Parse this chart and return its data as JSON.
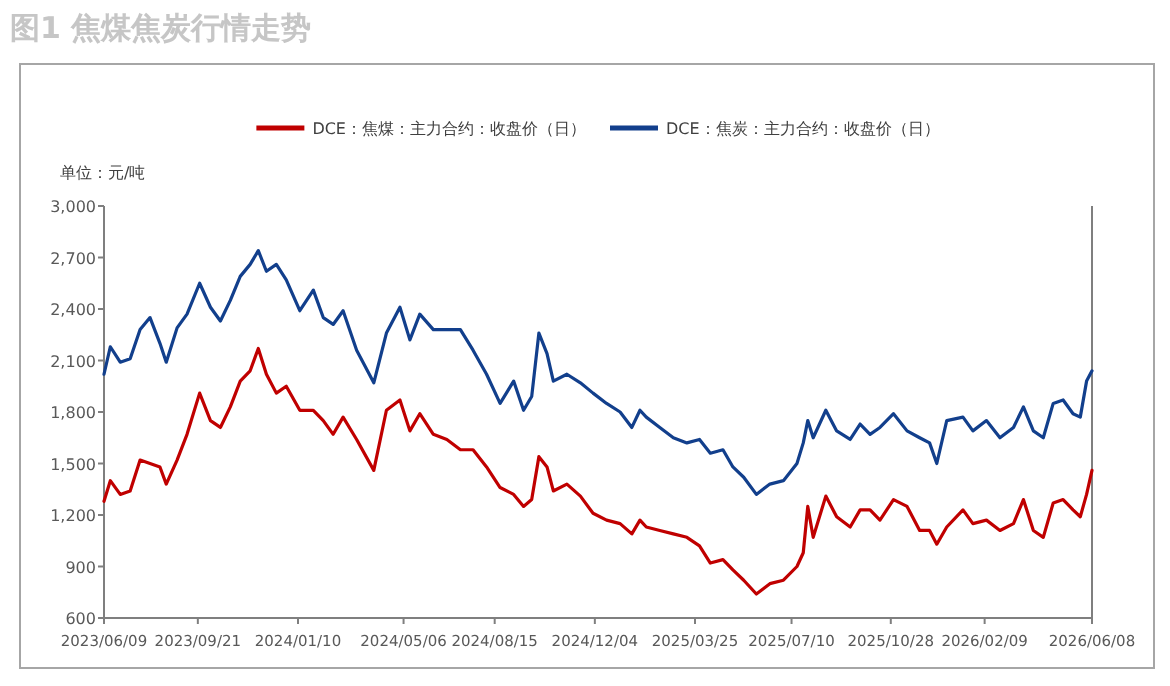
{
  "chart_data": {
    "type": "line",
    "title": "图1 焦煤焦炭行情走势",
    "ylabel": "单位：元/吨",
    "legend": "top",
    "grid": false,
    "marker": "none",
    "line_style": "solid",
    "x": [
      "2023-06-09",
      "2023-06-16",
      "2023-06-27",
      "2023-07-08",
      "2023-07-19",
      "2023-07-30",
      "2023-08-10",
      "2023-08-17",
      "2023-08-29",
      "2023-09-09",
      "2023-09-23",
      "2023-10-05",
      "2023-10-16",
      "2023-10-27",
      "2023-11-07",
      "2023-11-18",
      "2023-11-27",
      "2023-12-06",
      "2023-12-17",
      "2023-12-28",
      "2024-01-12",
      "2024-01-27",
      "2024-02-07",
      "2024-02-18",
      "2024-02-29",
      "2024-03-15",
      "2024-04-03",
      "2024-04-17",
      "2024-05-02",
      "2024-05-13",
      "2024-05-24",
      "2024-06-08",
      "2024-06-23",
      "2024-07-08",
      "2024-07-22",
      "2024-08-06",
      "2024-08-21",
      "2024-09-05",
      "2024-09-16",
      "2024-09-25",
      "2024-10-03",
      "2024-10-12",
      "2024-10-19",
      "2024-11-03",
      "2024-11-18",
      "2024-12-02",
      "2024-12-17",
      "2025-01-01",
      "2025-01-14",
      "2025-01-23",
      "2025-01-30",
      "2025-02-14",
      "2025-03-01",
      "2025-03-16",
      "2025-03-30",
      "2025-04-11",
      "2025-04-25",
      "2025-05-06",
      "2025-05-18",
      "2025-06-01",
      "2025-06-16",
      "2025-07-01",
      "2025-07-16",
      "2025-07-23",
      "2025-07-28",
      "2025-08-03",
      "2025-08-17",
      "2025-08-29",
      "2025-09-13",
      "2025-09-24",
      "2025-10-05",
      "2025-10-16",
      "2025-10-31",
      "2025-11-15",
      "2025-11-29",
      "2025-12-10",
      "2025-12-18",
      "2025-12-29",
      "2026-01-16",
      "2026-01-27",
      "2026-02-11",
      "2026-02-26",
      "2026-03-13",
      "2026-03-24",
      "2026-04-04",
      "2026-04-15",
      "2026-04-26",
      "2026-05-07",
      "2026-05-18",
      "2026-05-26",
      "2026-06-02",
      "2026-06-08"
    ],
    "series": [
      {
        "name": "DCE：焦煤：主力合约：收盘价（日）",
        "color": "#c00000",
        "values": [
          1280,
          1400,
          1320,
          1340,
          1520,
          1500,
          1480,
          1380,
          1520,
          1670,
          1910,
          1750,
          1710,
          1830,
          1980,
          2040,
          2170,
          2020,
          1910,
          1950,
          1810,
          1810,
          1750,
          1670,
          1770,
          1640,
          1460,
          1810,
          1870,
          1690,
          1790,
          1670,
          1640,
          1580,
          1580,
          1480,
          1360,
          1320,
          1250,
          1290,
          1540,
          1480,
          1340,
          1380,
          1310,
          1210,
          1170,
          1150,
          1090,
          1170,
          1130,
          1110,
          1090,
          1070,
          1020,
          920,
          940,
          880,
          820,
          740,
          800,
          820,
          900,
          980,
          1250,
          1070,
          1310,
          1190,
          1130,
          1230,
          1230,
          1170,
          1290,
          1250,
          1110,
          1110,
          1030,
          1130,
          1230,
          1150,
          1170,
          1110,
          1150,
          1290,
          1110,
          1070,
          1270,
          1290,
          1230,
          1190,
          1320,
          1460
        ]
      },
      {
        "name": "DCE：焦炭：主力合约：收盘价（日）",
        "color": "#123f8c",
        "values": [
          2020,
          2180,
          2090,
          2110,
          2280,
          2350,
          2200,
          2090,
          2290,
          2370,
          2550,
          2410,
          2330,
          2450,
          2590,
          2660,
          2740,
          2620,
          2660,
          2570,
          2390,
          2510,
          2350,
          2310,
          2390,
          2160,
          1970,
          2260,
          2410,
          2220,
          2370,
          2280,
          2280,
          2280,
          2160,
          2020,
          1850,
          1980,
          1810,
          1890,
          2260,
          2140,
          1980,
          2020,
          1970,
          1910,
          1850,
          1800,
          1710,
          1810,
          1770,
          1710,
          1650,
          1620,
          1640,
          1560,
          1580,
          1480,
          1420,
          1320,
          1380,
          1400,
          1500,
          1620,
          1750,
          1650,
          1810,
          1690,
          1640,
          1730,
          1670,
          1710,
          1790,
          1690,
          1650,
          1620,
          1500,
          1750,
          1770,
          1690,
          1750,
          1650,
          1710,
          1830,
          1690,
          1650,
          1850,
          1870,
          1790,
          1770,
          1980,
          2040
        ]
      }
    ],
    "xlim": [
      "2023-06-09",
      "2026-06-08"
    ],
    "xticks": [
      {
        "value": "2023-06-09",
        "label": "2023/06/09"
      },
      {
        "value": "2023-09-21",
        "label": "2023/09/21"
      },
      {
        "value": "2024-01-10",
        "label": "2024/01/10"
      },
      {
        "value": "2024-05-06",
        "label": "2024/05/06"
      },
      {
        "value": "2024-08-15",
        "label": "2024/08/15"
      },
      {
        "value": "2024-12-04",
        "label": "2024/12/04"
      },
      {
        "value": "2025-03-25",
        "label": "2025/03/25"
      },
      {
        "value": "2025-07-10",
        "label": "2025/07/10"
      },
      {
        "value": "2025-10-28",
        "label": "2025/10/28"
      },
      {
        "value": "2026-02-09",
        "label": "2026/02/09"
      },
      {
        "value": "2026-06-08",
        "label": "2026/06/08"
      }
    ],
    "ylim": [
      600,
      3000
    ],
    "yticks": [
      600,
      900,
      {
        "value": 1200,
        "label": "1,200"
      },
      {
        "value": 1500,
        "label": "1,500"
      },
      {
        "value": 1800,
        "label": "1,800"
      },
      {
        "value": 2100,
        "label": "2,100"
      },
      {
        "value": 2400,
        "label": "2,400"
      },
      {
        "value": 2700,
        "label": "2,700"
      },
      {
        "value": 3000,
        "label": "3,000"
      }
    ]
  }
}
